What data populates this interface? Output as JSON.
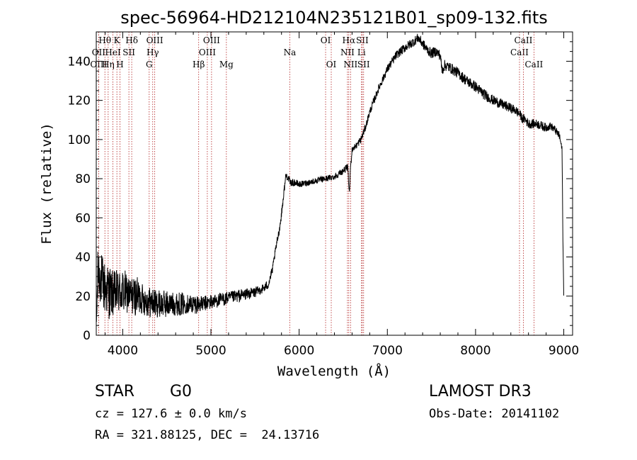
{
  "chart_data": {
    "type": "line",
    "title": "spec-56964-HD212104N235121B01_sp09-132.fits",
    "xlabel": "Wavelength (Å)",
    "ylabel": "Flux (relative)",
    "xlim": [
      3700,
      9100
    ],
    "ylim": [
      0,
      155
    ],
    "xticks": [
      4000,
      5000,
      6000,
      7000,
      8000,
      9000
    ],
    "yticks": [
      0,
      20,
      40,
      60,
      80,
      100,
      120,
      140
    ],
    "grid": false,
    "series": [
      {
        "name": "flux",
        "anchors_x": [
          3700,
          3720,
          3760,
          3800,
          3850,
          3900,
          3950,
          4000,
          4050,
          4100,
          4150,
          4200,
          4250,
          4300,
          4400,
          4500,
          4600,
          4700,
          4800,
          4900,
          5000,
          5100,
          5200,
          5300,
          5400,
          5500,
          5600,
          5650,
          5700,
          5720,
          5750,
          5780,
          5800,
          5850,
          5880,
          5900,
          5950,
          6000,
          6100,
          6200,
          6300,
          6400,
          6500,
          6550,
          6570,
          6580,
          6600,
          6650,
          6700,
          6750,
          6800,
          6900,
          7000,
          7100,
          7200,
          7300,
          7350,
          7400,
          7450,
          7500,
          7550,
          7600,
          7620,
          7650,
          7700,
          7800,
          7900,
          8000,
          8100,
          8200,
          8300,
          8400,
          8450,
          8500,
          8540,
          8550,
          8600,
          8700,
          8800,
          8850,
          8900,
          8950,
          8980,
          8990,
          9000
        ],
        "anchors_y": [
          3,
          33,
          28,
          24,
          22,
          21,
          22,
          22,
          21,
          20,
          20,
          19,
          18,
          17,
          16,
          16,
          16,
          16,
          16,
          16,
          17,
          18,
          19,
          20,
          21,
          22,
          24,
          26,
          34,
          40,
          48,
          55,
          62,
          82,
          80,
          78,
          78,
          77,
          78,
          79,
          80,
          81,
          84,
          86,
          72,
          84,
          95,
          97,
          100,
          106,
          114,
          126,
          136,
          143,
          147,
          150,
          152,
          149,
          146,
          144,
          145,
          143,
          135,
          138,
          137,
          134,
          130,
          127,
          123,
          120,
          118,
          116,
          115,
          113,
          110,
          111,
          108,
          108,
          106,
          107,
          105,
          102,
          95,
          50,
          20
        ],
        "noise": [
          14,
          12,
          10,
          8,
          7,
          6,
          5,
          4,
          3.6,
          3.2,
          2.8,
          2.4,
          2.1,
          1.8,
          1.6,
          1.6,
          1.6,
          1.7,
          1.9,
          2.0,
          2.2,
          2.4,
          2.6,
          2.7,
          2.8,
          2.8,
          2.8,
          2.6,
          2.5,
          2.4,
          2.3,
          2.0,
          1.8
        ]
      }
    ],
    "lines": [
      {
        "label": "OIII",
        "x": 3727,
        "row": 3
      },
      {
        "label": "OII",
        "x": 3727,
        "row": 2
      },
      {
        "label": "Hθ",
        "x": 3798,
        "row": 1
      },
      {
        "label": "Hη",
        "x": 3835,
        "row": 3
      },
      {
        "label": "HeI",
        "x": 3889,
        "row": 2
      },
      {
        "label": "K",
        "x": 3934,
        "row": 1
      },
      {
        "label": "H",
        "x": 3969,
        "row": 3
      },
      {
        "label": "SII",
        "x": 4070,
        "row": 2
      },
      {
        "label": "Hδ",
        "x": 4102,
        "row": 1
      },
      {
        "label": "G",
        "x": 4300,
        "row": 3
      },
      {
        "label": "Hγ",
        "x": 4340,
        "row": 2
      },
      {
        "label": "OIII",
        "x": 4363,
        "row": 1
      },
      {
        "label": "Hβ",
        "x": 4861,
        "row": 3
      },
      {
        "label": "OIII",
        "x": 4959,
        "row": 2
      },
      {
        "label": "OIII",
        "x": 5007,
        "row": 1
      },
      {
        "label": "Mg",
        "x": 5175,
        "row": 3
      },
      {
        "label": "Na",
        "x": 5894,
        "row": 2
      },
      {
        "label": "OI",
        "x": 6300,
        "row": 1
      },
      {
        "label": "OI",
        "x": 6364,
        "row": 3
      },
      {
        "label": "NII",
        "x": 6548,
        "row": 2
      },
      {
        "label": "Hα",
        "x": 6563,
        "row": 1
      },
      {
        "label": "NII",
        "x": 6583,
        "row": 3
      },
      {
        "label": "Li",
        "x": 6707,
        "row": 2
      },
      {
        "label": "SII",
        "x": 6716,
        "row": 1
      },
      {
        "label": "SII",
        "x": 6731,
        "row": 3
      },
      {
        "label": "CaII",
        "x": 8498,
        "row": 2
      },
      {
        "label": "CaII",
        "x": 8542,
        "row": 1
      },
      {
        "label": "CaII",
        "x": 8662,
        "row": 3
      }
    ]
  },
  "info": {
    "object_class": "STAR",
    "subclass": "G0",
    "survey": "LAMOST DR3",
    "cz": "cz = 127.6 ± 0.0 km/s",
    "obs_date": "Obs-Date: 20141102",
    "coords": "RA = 321.88125, DEC =  24.13716"
  }
}
